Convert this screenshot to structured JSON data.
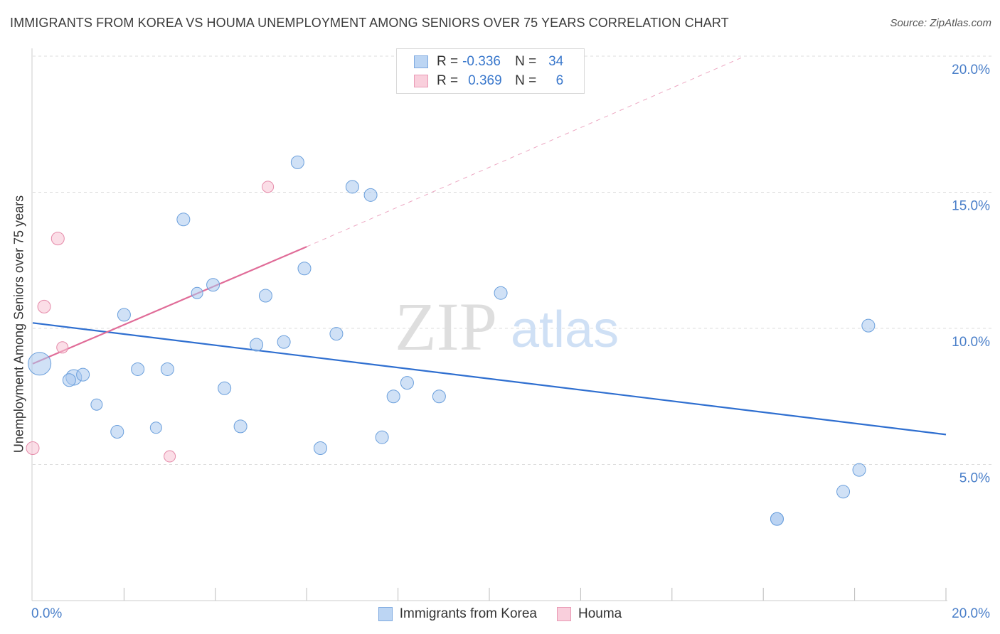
{
  "chart_data": {
    "type": "scatter",
    "title": "IMMIGRANTS FROM KOREA VS HOUMA UNEMPLOYMENT AMONG SENIORS OVER 75 YEARS CORRELATION CHART",
    "source": "Source: ZipAtlas.com",
    "ylabel": "Unemployment Among Seniors over 75 years",
    "xlabel": "",
    "xlim": [
      0,
      20
    ],
    "ylim": [
      0,
      20
    ],
    "x_tick_labels": {
      "min": "0.0%",
      "max": "20.0%"
    },
    "y_ticks": [
      {
        "value": 20,
        "label": "20.0%"
      },
      {
        "value": 15,
        "label": "15.0%"
      },
      {
        "value": 10,
        "label": "10.0%"
      },
      {
        "value": 5,
        "label": "5.0%"
      }
    ],
    "watermark": {
      "zip": "ZIP",
      "atlas": "atlas"
    },
    "legend": [
      {
        "r_label": "R =",
        "r_value": "-0.336",
        "n_label": "N =",
        "n_value": "34"
      },
      {
        "r_label": "R =",
        "r_value": "0.369",
        "n_label": "N =",
        "n_value": "6"
      }
    ],
    "series": [
      {
        "name": "Immigrants from Korea",
        "color": "#a9c8ef",
        "stroke": "#6a9fdc",
        "line_color": "#2f6fd0",
        "trend": {
          "x0": 0.0,
          "y0": 10.2,
          "x1": 20.0,
          "y1": 6.1
        },
        "points": [
          {
            "x": 0.15,
            "y": 8.7,
            "r": 16
          },
          {
            "x": 0.9,
            "y": 8.2,
            "r": 11
          },
          {
            "x": 0.8,
            "y": 8.1,
            "r": 9
          },
          {
            "x": 1.1,
            "y": 8.3,
            "r": 9
          },
          {
            "x": 1.4,
            "y": 7.2,
            "r": 8
          },
          {
            "x": 1.85,
            "y": 6.2,
            "r": 9
          },
          {
            "x": 2.0,
            "y": 10.5,
            "r": 9
          },
          {
            "x": 2.3,
            "y": 8.5,
            "r": 9
          },
          {
            "x": 2.7,
            "y": 6.35,
            "r": 8
          },
          {
            "x": 2.95,
            "y": 8.5,
            "r": 9
          },
          {
            "x": 3.3,
            "y": 14.0,
            "r": 9
          },
          {
            "x": 3.6,
            "y": 11.3,
            "r": 8
          },
          {
            "x": 3.95,
            "y": 11.6,
            "r": 9
          },
          {
            "x": 4.2,
            "y": 7.8,
            "r": 9
          },
          {
            "x": 4.55,
            "y": 6.4,
            "r": 9
          },
          {
            "x": 4.9,
            "y": 9.4,
            "r": 9
          },
          {
            "x": 5.1,
            "y": 11.2,
            "r": 9
          },
          {
            "x": 5.5,
            "y": 9.5,
            "r": 9
          },
          {
            "x": 5.8,
            "y": 16.1,
            "r": 9
          },
          {
            "x": 5.95,
            "y": 12.2,
            "r": 9
          },
          {
            "x": 6.3,
            "y": 5.6,
            "r": 9
          },
          {
            "x": 6.65,
            "y": 9.8,
            "r": 9
          },
          {
            "x": 7.0,
            "y": 15.2,
            "r": 9
          },
          {
            "x": 7.4,
            "y": 14.9,
            "r": 9
          },
          {
            "x": 7.65,
            "y": 6.0,
            "r": 9
          },
          {
            "x": 7.9,
            "y": 7.5,
            "r": 9
          },
          {
            "x": 8.2,
            "y": 8.0,
            "r": 9
          },
          {
            "x": 8.9,
            "y": 7.5,
            "r": 9
          },
          {
            "x": 10.25,
            "y": 11.3,
            "r": 9
          },
          {
            "x": 16.3,
            "y": 3.0,
            "r": 9
          },
          {
            "x": 16.3,
            "y": 3.0,
            "r": 9
          },
          {
            "x": 17.75,
            "y": 4.0,
            "r": 9
          },
          {
            "x": 18.1,
            "y": 4.8,
            "r": 9
          },
          {
            "x": 18.3,
            "y": 10.1,
            "r": 9
          }
        ]
      },
      {
        "name": "Houma",
        "color": "#f7c3d3",
        "stroke": "#e58aa9",
        "line_color": "#e06c98",
        "trend": {
          "x0": 0.0,
          "y0": 8.7,
          "x1": 6.0,
          "y1": 13.0,
          "dash_to_x": 15.6,
          "dash_to_y": 20.0
        },
        "points": [
          {
            "x": 0.0,
            "y": 5.6,
            "r": 9
          },
          {
            "x": 0.25,
            "y": 10.8,
            "r": 9
          },
          {
            "x": 0.55,
            "y": 13.3,
            "r": 9
          },
          {
            "x": 0.65,
            "y": 9.3,
            "r": 8
          },
          {
            "x": 3.0,
            "y": 5.3,
            "r": 8
          },
          {
            "x": 5.15,
            "y": 15.2,
            "r": 8
          }
        ]
      }
    ]
  }
}
